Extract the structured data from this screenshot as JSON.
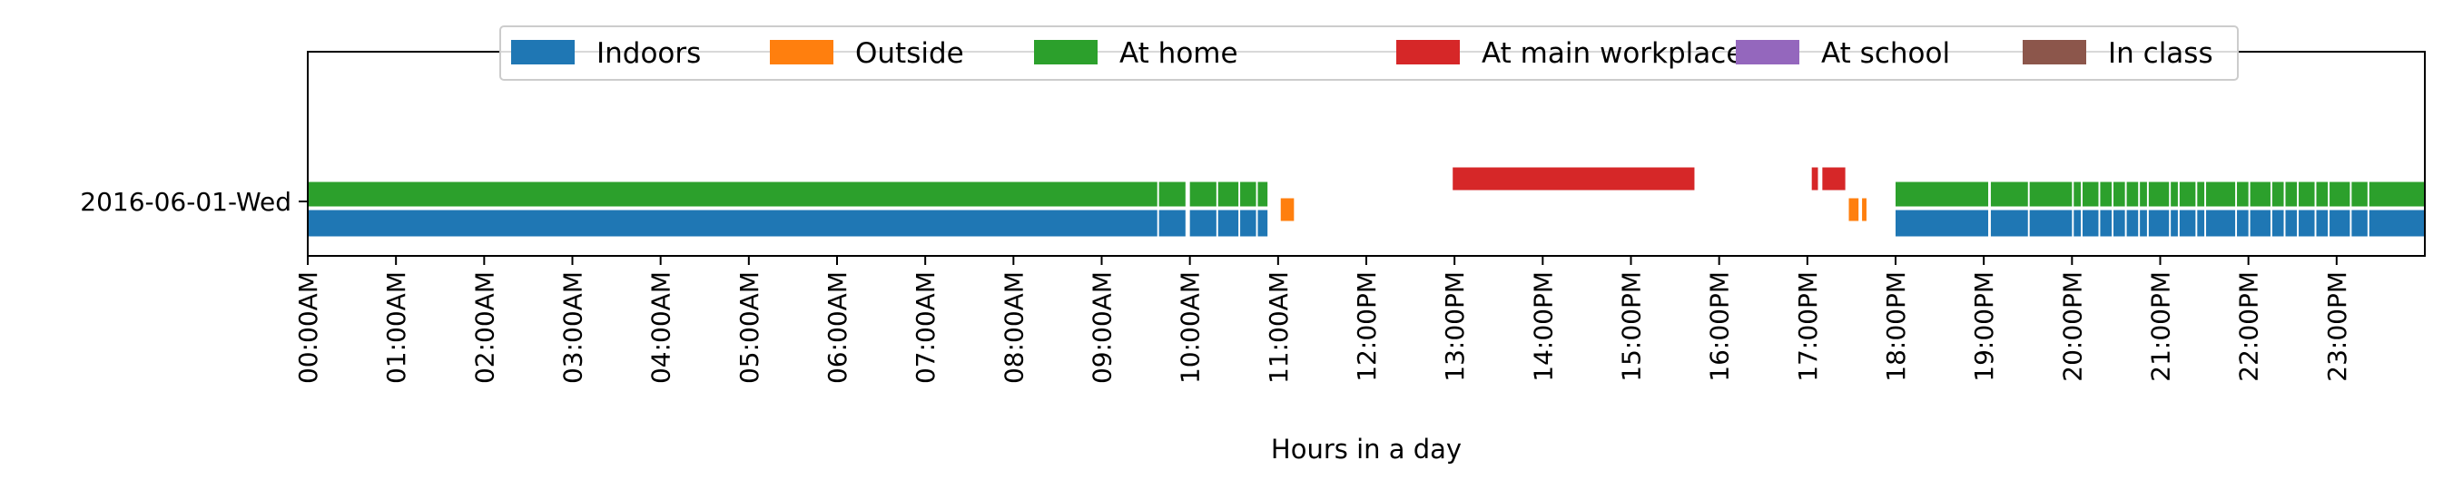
{
  "chart_data": {
    "type": "timeline",
    "xlabel": "Hours in a day",
    "xlim": [
      0,
      24
    ],
    "x_tick_labels": [
      "00:00AM",
      "01:00AM",
      "02:00AM",
      "03:00AM",
      "04:00AM",
      "05:00AM",
      "06:00AM",
      "07:00AM",
      "08:00AM",
      "09:00AM",
      "10:00AM",
      "11:00AM",
      "12:00PM",
      "13:00PM",
      "14:00PM",
      "15:00PM",
      "16:00PM",
      "17:00PM",
      "18:00PM",
      "19:00PM",
      "20:00PM",
      "21:00PM",
      "22:00PM",
      "23:00PM"
    ],
    "y_categories": [
      "2016-06-01-Wed"
    ],
    "legend": {
      "placement": "top-center",
      "entries": [
        {
          "name": "Indoors",
          "color": "#1f77b4"
        },
        {
          "name": "Outside",
          "color": "#ff7f0e"
        },
        {
          "name": "At home",
          "color": "#2ca02c"
        },
        {
          "name": "At main workplace",
          "color": "#d62728"
        },
        {
          "name": "At school",
          "color": "#9467bd"
        },
        {
          "name": "In class",
          "color": "#8c564b"
        }
      ]
    },
    "series": [
      {
        "name": "Indoors",
        "lane": 0,
        "intervals": [
          [
            0.0,
            9.63
          ],
          [
            9.65,
            9.95
          ],
          [
            10.0,
            10.3
          ],
          [
            10.32,
            10.55
          ],
          [
            10.57,
            10.75
          ],
          [
            10.77,
            10.88
          ],
          [
            18.0,
            19.05
          ],
          [
            19.08,
            19.5
          ],
          [
            19.52,
            20.0
          ],
          [
            20.02,
            20.1
          ],
          [
            20.12,
            20.3
          ],
          [
            20.32,
            20.45
          ],
          [
            20.47,
            20.6
          ],
          [
            20.62,
            20.75
          ],
          [
            20.77,
            20.85
          ],
          [
            20.87,
            21.1
          ],
          [
            21.12,
            21.2
          ],
          [
            21.22,
            21.4
          ],
          [
            21.42,
            21.5
          ],
          [
            21.52,
            21.85
          ],
          [
            21.87,
            22.0
          ],
          [
            22.02,
            22.25
          ],
          [
            22.27,
            22.4
          ],
          [
            22.42,
            22.55
          ],
          [
            22.57,
            22.75
          ],
          [
            22.77,
            22.9
          ],
          [
            22.92,
            23.15
          ],
          [
            23.17,
            23.35
          ],
          [
            23.37,
            24.0
          ]
        ]
      },
      {
        "name": "Outside",
        "lane": 1,
        "intervals": [
          [
            11.03,
            11.18
          ],
          [
            17.47,
            17.58
          ],
          [
            17.62,
            17.67
          ]
        ]
      },
      {
        "name": "At home",
        "lane": 2,
        "intervals": [
          [
            0.0,
            9.63
          ],
          [
            9.65,
            9.95
          ],
          [
            10.0,
            10.3
          ],
          [
            10.32,
            10.55
          ],
          [
            10.57,
            10.75
          ],
          [
            10.77,
            10.88
          ],
          [
            18.0,
            19.05
          ],
          [
            19.08,
            19.5
          ],
          [
            19.52,
            20.0
          ],
          [
            20.02,
            20.1
          ],
          [
            20.12,
            20.3
          ],
          [
            20.32,
            20.45
          ],
          [
            20.47,
            20.6
          ],
          [
            20.62,
            20.75
          ],
          [
            20.77,
            20.85
          ],
          [
            20.87,
            21.1
          ],
          [
            21.12,
            21.2
          ],
          [
            21.22,
            21.4
          ],
          [
            21.42,
            21.5
          ],
          [
            21.52,
            21.85
          ],
          [
            21.87,
            22.0
          ],
          [
            22.02,
            22.25
          ],
          [
            22.27,
            22.4
          ],
          [
            22.42,
            22.55
          ],
          [
            22.57,
            22.75
          ],
          [
            22.77,
            22.9
          ],
          [
            22.92,
            23.15
          ],
          [
            23.17,
            23.35
          ],
          [
            23.37,
            24.0
          ]
        ]
      },
      {
        "name": "At main workplace",
        "lane": 3,
        "intervals": [
          [
            12.98,
            15.72
          ],
          [
            17.05,
            17.12
          ],
          [
            17.17,
            17.43
          ]
        ]
      }
    ],
    "grid": false
  }
}
